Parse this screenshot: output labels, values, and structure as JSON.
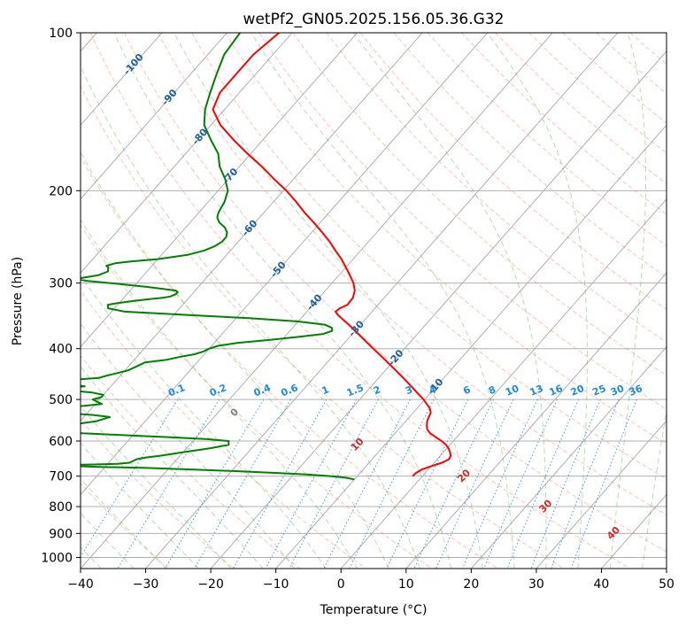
{
  "chart_data": {
    "type": "skew-t",
    "title": "wetPf2_GN05.2025.156.05.36.G32",
    "xlabel": "Temperature (°C)",
    "ylabel": "Pressure (hPa)",
    "xlim": [
      -40,
      50
    ],
    "ylim": [
      1050,
      100
    ],
    "x_ticks": [
      "−40",
      "−30",
      "−20",
      "−10",
      "0",
      "10",
      "20",
      "30",
      "40",
      "50"
    ],
    "x_tick_values": [
      -40,
      -30,
      -20,
      -10,
      0,
      10,
      20,
      30,
      40,
      50
    ],
    "y_ticks": [
      "100",
      "200",
      "300",
      "400",
      "500",
      "600",
      "700",
      "800",
      "900",
      "1000"
    ],
    "y_tick_values": [
      100,
      200,
      300,
      400,
      500,
      600,
      700,
      800,
      900,
      1000
    ],
    "grid": true,
    "colors": {
      "temperature": "#ff0000",
      "dewpoint": "#008000",
      "isotherm": "#808080",
      "dry_adiabat": "#ff7f50",
      "moist_adiabat": "#2ca02c",
      "mixing_ratio": "#1e88e5",
      "isotherm_label": "#1f5f9e",
      "moist_label_red": "#d62728",
      "moist_label_gray": "#808080"
    },
    "isotherm_labels": [
      "-100",
      "-90",
      "-80",
      "-70",
      "-60",
      "-50",
      "-40",
      "-30",
      "-20",
      "-10"
    ],
    "isotherm_label_values": [
      -100,
      -90,
      -80,
      -70,
      -60,
      -50,
      -40,
      -30,
      -20,
      -10
    ],
    "mixing_ratio_labels": [
      "0.1",
      "0.2",
      "0.4",
      "0.6",
      "1",
      "1.5",
      "2",
      "3",
      "4",
      "6",
      "8",
      "10",
      "13",
      "16",
      "20",
      "25",
      "30",
      "36"
    ],
    "mixing_ratio_values": [
      0.1,
      0.2,
      0.4,
      0.6,
      1,
      1.5,
      2,
      3,
      4,
      6,
      8,
      10,
      13,
      16,
      20,
      25,
      30,
      36
    ],
    "moist_adiabat_labels": [
      "0",
      "10",
      "20",
      "30",
      "40"
    ],
    "moist_adiabat_label_values": [
      0,
      10,
      20,
      30,
      40
    ],
    "series": [
      {
        "pressure": [
          700,
          690,
          680,
          670,
          660,
          650,
          640,
          630,
          620,
          610,
          600,
          590,
          580,
          570,
          560,
          550,
          540,
          530,
          520,
          500,
          480,
          460,
          440,
          420,
          400,
          380,
          360,
          345,
          340,
          335,
          330,
          320,
          310,
          300,
          290,
          280,
          270,
          260,
          250,
          240,
          230,
          220,
          210,
          200,
          190,
          180,
          170,
          160,
          150,
          140,
          130,
          120,
          110,
          100
        ],
        "temperature": [
          -1.5,
          -1.4,
          -1.0,
          0.0,
          1.2,
          1.8,
          1.6,
          1.0,
          0.3,
          -0.6,
          -1.8,
          -3.2,
          -4.6,
          -5.6,
          -6.2,
          -6.7,
          -7.0,
          -7.3,
          -8.0,
          -10.2,
          -12.8,
          -15.5,
          -18.4,
          -21.5,
          -24.8,
          -28.2,
          -31.8,
          -34.8,
          -35.6,
          -35.4,
          -34.7,
          -34.8,
          -35.5,
          -36.7,
          -38.3,
          -40.0,
          -41.8,
          -43.9,
          -46.0,
          -48.4,
          -51.0,
          -53.8,
          -56.5,
          -59.5,
          -63.0,
          -66.5,
          -70.5,
          -74.5,
          -78.5,
          -81.8,
          -83.0,
          -83.0,
          -83.0,
          -82.0
        ]
      },
      {
        "pressure": [
          710,
          705,
          700,
          695,
          690,
          685,
          680,
          675,
          672,
          670,
          668,
          666,
          665,
          663,
          660,
          655,
          650,
          645,
          640,
          630,
          620,
          610,
          600,
          595,
          590,
          585,
          580,
          575,
          570,
          560,
          550,
          540,
          535,
          530,
          525,
          520,
          515,
          510,
          505,
          500,
          495,
          490,
          485,
          480,
          478,
          476,
          474,
          472,
          470,
          465,
          460,
          455,
          450,
          440,
          430,
          425,
          420,
          415,
          410,
          405,
          400,
          395,
          390,
          385,
          380,
          375,
          370,
          365,
          360,
          355,
          350,
          345,
          340,
          335,
          330,
          328,
          325,
          322,
          320,
          318,
          315,
          312,
          310,
          308,
          305,
          300,
          297,
          295,
          293,
          290,
          285,
          280,
          278,
          275,
          273,
          270,
          265,
          260,
          255,
          250,
          245,
          240,
          235,
          230,
          225,
          220,
          210,
          200,
          190,
          180,
          170,
          160,
          150,
          140,
          130,
          120,
          110,
          100
        ],
        "dewpoint": [
          -10.0,
          -11.5,
          -14.0,
          -18.0,
          -23.0,
          -29.0,
          -36.0,
          -44.0,
          -51.0,
          -54.0,
          -56.0,
          -55.0,
          -52.0,
          -48.5,
          -46.8,
          -46.5,
          -46.2,
          -45.0,
          -43.0,
          -40.0,
          -36.5,
          -34.0,
          -34.5,
          -38.0,
          -44.0,
          -51.0,
          -58.0,
          -62.0,
          -63.0,
          -61.5,
          -57.5,
          -56.0,
          -59.0,
          -64.0,
          -66.0,
          -65.0,
          -62.0,
          -59.0,
          -60.0,
          -61.0,
          -60.0,
          -60.0,
          -62.0,
          -66.0,
          -68.0,
          -67.5,
          -66.0,
          -64.0,
          -65.0,
          -67.5,
          -68.0,
          -63.0,
          -62.0,
          -59.5,
          -58.5,
          -58.0,
          -55.0,
          -53.5,
          -51.5,
          -50.5,
          -50.0,
          -49.0,
          -46.5,
          -42.0,
          -38.0,
          -34.5,
          -33.5,
          -34.0,
          -35.5,
          -40.0,
          -48.0,
          -58.0,
          -68.0,
          -71.0,
          -71.5,
          -70.5,
          -68.5,
          -66.0,
          -64.0,
          -63.0,
          -62.5,
          -62.5,
          -63.0,
          -65.0,
          -68.0,
          -74.0,
          -78.0,
          -79.5,
          -79.0,
          -77.0,
          -76.0,
          -76.5,
          -77.0,
          -76.0,
          -74.0,
          -70.0,
          -66.0,
          -64.0,
          -63.0,
          -62.5,
          -62.5,
          -63.0,
          -64.0,
          -65.5,
          -66.5,
          -67.0,
          -67.5,
          -68.5,
          -70.5,
          -73.0,
          -75.0,
          -78.0,
          -81.0,
          -83.0,
          -84.5,
          -86.0,
          -87.5,
          -88.0
        ]
      }
    ]
  }
}
